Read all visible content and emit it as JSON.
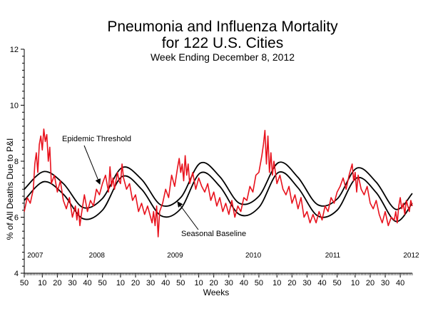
{
  "chart_data": {
    "type": "line",
    "title_lines": [
      "Pneumonia and Influenza Mortality",
      "for 122 U.S. Cities"
    ],
    "subtitle": "Week Ending December  8, 2012",
    "xlabel": "Weeks",
    "ylabel": "% of All Deaths Due to P&I",
    "ylim": [
      4,
      12
    ],
    "yticks": [
      4,
      6,
      8,
      10,
      12
    ],
    "x_week_index_range": [
      0,
      258
    ],
    "xticks": [
      {
        "i": 0,
        "label": "50"
      },
      {
        "i": 12,
        "label": "10"
      },
      {
        "i": 22,
        "label": "20"
      },
      {
        "i": 32,
        "label": "30"
      },
      {
        "i": 42,
        "label": "40"
      },
      {
        "i": 52,
        "label": "50"
      },
      {
        "i": 64,
        "label": "10"
      },
      {
        "i": 74,
        "label": "20"
      },
      {
        "i": 84,
        "label": "30"
      },
      {
        "i": 94,
        "label": "40"
      },
      {
        "i": 104,
        "label": "50"
      },
      {
        "i": 116,
        "label": "10"
      },
      {
        "i": 126,
        "label": "20"
      },
      {
        "i": 136,
        "label": "30"
      },
      {
        "i": 146,
        "label": "40"
      },
      {
        "i": 156,
        "label": "50"
      },
      {
        "i": 168,
        "label": "10"
      },
      {
        "i": 178,
        "label": "20"
      },
      {
        "i": 188,
        "label": "30"
      },
      {
        "i": 198,
        "label": "40"
      },
      {
        "i": 208,
        "label": "50"
      },
      {
        "i": 220,
        "label": "10"
      },
      {
        "i": 230,
        "label": "20"
      },
      {
        "i": 240,
        "label": "30"
      },
      {
        "i": 250,
        "label": "40"
      }
    ],
    "year_labels": [
      {
        "i": 2,
        "label": "2007"
      },
      {
        "i": 43,
        "label": "2008"
      },
      {
        "i": 95,
        "label": "2009"
      },
      {
        "i": 147,
        "label": "2010"
      },
      {
        "i": 200,
        "label": "2011"
      },
      {
        "i": 252,
        "label": "2012"
      }
    ],
    "annotations": [
      {
        "text": "Epidemic Threshold",
        "target": "Epidemic Threshold"
      },
      {
        "text": "Seasonal Baseline",
        "target": "Seasonal Baseline"
      }
    ],
    "series": [
      {
        "name": "Epidemic Threshold",
        "color": "#000000",
        "points": [
          [
            0,
            7.0
          ],
          [
            13,
            7.63
          ],
          [
            26,
            7.2
          ],
          [
            39,
            6.35
          ],
          [
            52,
            6.67
          ],
          [
            65,
            7.77
          ],
          [
            78,
            7.35
          ],
          [
            91,
            6.43
          ],
          [
            104,
            6.7
          ],
          [
            117,
            7.93
          ],
          [
            130,
            7.45
          ],
          [
            143,
            6.5
          ],
          [
            156,
            6.75
          ],
          [
            169,
            7.95
          ],
          [
            182,
            7.42
          ],
          [
            195,
            6.45
          ],
          [
            208,
            6.65
          ],
          [
            221,
            7.75
          ],
          [
            234,
            7.25
          ],
          [
            247,
            6.28
          ],
          [
            258,
            6.85
          ]
        ]
      },
      {
        "name": "Seasonal Baseline",
        "color": "#000000",
        "points": [
          [
            0,
            6.6
          ],
          [
            13,
            7.27
          ],
          [
            26,
            6.82
          ],
          [
            39,
            5.95
          ],
          [
            52,
            6.25
          ],
          [
            65,
            7.45
          ],
          [
            78,
            7.0
          ],
          [
            91,
            6.05
          ],
          [
            104,
            6.3
          ],
          [
            117,
            7.58
          ],
          [
            130,
            7.1
          ],
          [
            143,
            6.1
          ],
          [
            156,
            6.35
          ],
          [
            169,
            7.6
          ],
          [
            182,
            7.05
          ],
          [
            195,
            6.05
          ],
          [
            208,
            6.25
          ],
          [
            221,
            7.4
          ],
          [
            234,
            6.88
          ],
          [
            247,
            5.85
          ],
          [
            258,
            6.5
          ]
        ]
      },
      {
        "name": "Pneumonia and Influenza Mortality",
        "color": "#e8121d",
        "points": [
          [
            0,
            6.2
          ],
          [
            2,
            6.7
          ],
          [
            4,
            6.5
          ],
          [
            6,
            7.0
          ],
          [
            7,
            7.9
          ],
          [
            8,
            8.3
          ],
          [
            9,
            7.6
          ],
          [
            10,
            8.6
          ],
          [
            11,
            8.9
          ],
          [
            12,
            8.4
          ],
          [
            13,
            9.15
          ],
          [
            14,
            8.7
          ],
          [
            15,
            8.95
          ],
          [
            16,
            8.0
          ],
          [
            17,
            8.5
          ],
          [
            18,
            7.2
          ],
          [
            20,
            7.5
          ],
          [
            22,
            6.9
          ],
          [
            24,
            7.3
          ],
          [
            26,
            6.6
          ],
          [
            28,
            6.3
          ],
          [
            30,
            6.7
          ],
          [
            32,
            6.0
          ],
          [
            34,
            6.4
          ],
          [
            35,
            5.9
          ],
          [
            36,
            6.3
          ],
          [
            37,
            5.7
          ],
          [
            38,
            6.1
          ],
          [
            40,
            6.8
          ],
          [
            42,
            6.2
          ],
          [
            44,
            6.6
          ],
          [
            46,
            6.4
          ],
          [
            48,
            7.0
          ],
          [
            50,
            6.8
          ],
          [
            52,
            7.2
          ],
          [
            54,
            7.5
          ],
          [
            56,
            6.9
          ],
          [
            57,
            7.8
          ],
          [
            58,
            7.1
          ],
          [
            59,
            7.4
          ],
          [
            60,
            7.0
          ],
          [
            62,
            7.6
          ],
          [
            63,
            7.3
          ],
          [
            64,
            7.2
          ],
          [
            65,
            7.9
          ],
          [
            66,
            7.4
          ],
          [
            68,
            7.0
          ],
          [
            70,
            7.2
          ],
          [
            72,
            6.6
          ],
          [
            74,
            6.8
          ],
          [
            76,
            6.2
          ],
          [
            78,
            6.5
          ],
          [
            80,
            6.1
          ],
          [
            82,
            6.4
          ],
          [
            84,
            6.0
          ],
          [
            85,
            5.8
          ],
          [
            86,
            6.2
          ],
          [
            87,
            5.7
          ],
          [
            88,
            6.4
          ],
          [
            89,
            5.3
          ],
          [
            90,
            6.2
          ],
          [
            92,
            6.5
          ],
          [
            94,
            7.0
          ],
          [
            96,
            6.7
          ],
          [
            98,
            7.5
          ],
          [
            100,
            7.1
          ],
          [
            102,
            7.8
          ],
          [
            103,
            8.1
          ],
          [
            104,
            7.6
          ],
          [
            105,
            7.9
          ],
          [
            106,
            7.3
          ],
          [
            107,
            8.2
          ],
          [
            108,
            7.5
          ],
          [
            109,
            7.9
          ],
          [
            110,
            7.2
          ],
          [
            112,
            7.6
          ],
          [
            114,
            7.0
          ],
          [
            116,
            7.4
          ],
          [
            118,
            7.1
          ],
          [
            120,
            6.9
          ],
          [
            122,
            7.2
          ],
          [
            124,
            6.6
          ],
          [
            126,
            6.9
          ],
          [
            128,
            6.4
          ],
          [
            130,
            6.7
          ],
          [
            132,
            6.2
          ],
          [
            134,
            6.5
          ],
          [
            136,
            6.1
          ],
          [
            138,
            6.6
          ],
          [
            140,
            6.0
          ],
          [
            142,
            6.4
          ],
          [
            144,
            6.2
          ],
          [
            146,
            6.7
          ],
          [
            148,
            6.6
          ],
          [
            150,
            7.1
          ],
          [
            152,
            6.9
          ],
          [
            154,
            7.5
          ],
          [
            156,
            7.6
          ],
          [
            158,
            8.2
          ],
          [
            159,
            8.6
          ],
          [
            160,
            9.1
          ],
          [
            161,
            7.9
          ],
          [
            162,
            8.9
          ],
          [
            163,
            7.6
          ],
          [
            164,
            8.3
          ],
          [
            165,
            7.5
          ],
          [
            166,
            8.0
          ],
          [
            168,
            7.2
          ],
          [
            170,
            7.5
          ],
          [
            172,
            7.0
          ],
          [
            174,
            6.8
          ],
          [
            176,
            7.1
          ],
          [
            178,
            6.5
          ],
          [
            180,
            6.8
          ],
          [
            182,
            6.3
          ],
          [
            184,
            6.7
          ],
          [
            186,
            6.0
          ],
          [
            188,
            6.2
          ],
          [
            190,
            5.8
          ],
          [
            192,
            6.1
          ],
          [
            194,
            5.8
          ],
          [
            196,
            6.2
          ],
          [
            198,
            5.9
          ],
          [
            200,
            6.4
          ],
          [
            202,
            6.2
          ],
          [
            204,
            6.7
          ],
          [
            206,
            6.5
          ],
          [
            208,
            6.9
          ],
          [
            210,
            7.1
          ],
          [
            212,
            7.4
          ],
          [
            214,
            7.0
          ],
          [
            216,
            7.5
          ],
          [
            218,
            7.9
          ],
          [
            219,
            7.3
          ],
          [
            220,
            7.6
          ],
          [
            221,
            6.9
          ],
          [
            222,
            7.5
          ],
          [
            224,
            7.0
          ],
          [
            226,
            6.8
          ],
          [
            228,
            7.1
          ],
          [
            230,
            6.5
          ],
          [
            232,
            6.3
          ],
          [
            234,
            6.6
          ],
          [
            236,
            6.1
          ],
          [
            238,
            5.8
          ],
          [
            240,
            6.2
          ],
          [
            242,
            5.7
          ],
          [
            244,
            6.0
          ],
          [
            246,
            5.9
          ],
          [
            247,
            6.2
          ],
          [
            248,
            5.8
          ],
          [
            249,
            6.4
          ],
          [
            250,
            6.7
          ],
          [
            251,
            6.3
          ],
          [
            252,
            6.5
          ],
          [
            253,
            6.1
          ],
          [
            254,
            6.6
          ],
          [
            255,
            6.4
          ],
          [
            256,
            6.2
          ],
          [
            257,
            6.6
          ],
          [
            258,
            6.4
          ]
        ]
      }
    ]
  }
}
